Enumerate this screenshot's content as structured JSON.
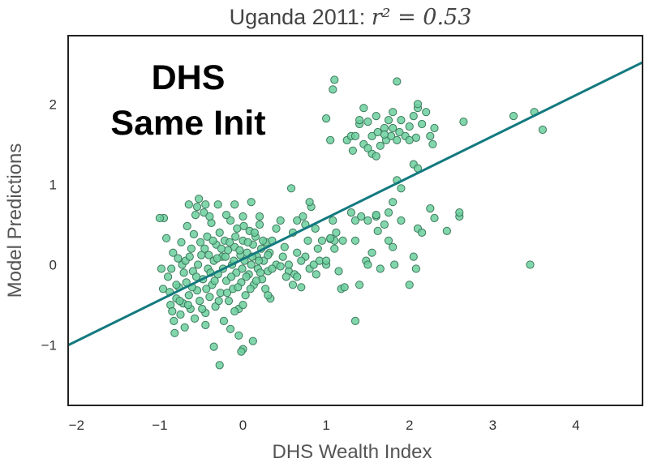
{
  "chart_data": {
    "type": "scatter",
    "title_prefix": "Uganda 2011: ",
    "title_math": "r² = 0.53",
    "xlabel": "DHS Wealth Index",
    "ylabel": "Model Predictions",
    "xlim": [
      -2.1,
      4.8
    ],
    "ylim": [
      -1.75,
      2.85
    ],
    "xticks": [
      {
        "value": -2,
        "label": "−2"
      },
      {
        "value": -1,
        "label": "−1"
      },
      {
        "value": 0,
        "label": "0"
      },
      {
        "value": 1,
        "label": "1"
      },
      {
        "value": 2,
        "label": "2"
      },
      {
        "value": 3,
        "label": "3"
      },
      {
        "value": 4,
        "label": "4"
      }
    ],
    "yticks": [
      {
        "value": -1,
        "label": "−1"
      },
      {
        "value": 0,
        "label": "0"
      },
      {
        "value": 1,
        "label": "1"
      },
      {
        "value": 2,
        "label": "2"
      }
    ],
    "grid": false,
    "overlay_text": [
      "DHS",
      "Same Init"
    ],
    "fit_line": {
      "slope": 0.51,
      "intercept": 0.07,
      "x_range": [
        -2.1,
        4.8
      ]
    },
    "point_color": "#6ccf9e",
    "point_edge": "#3d7a5c",
    "line_color": "#137a7f",
    "points": [
      [
        -0.95,
        0.58
      ],
      [
        -0.92,
        0.33
      ],
      [
        -0.9,
        -0.15
      ],
      [
        -0.88,
        -0.34
      ],
      [
        -0.87,
        -0.5
      ],
      [
        -0.85,
        -0.58
      ],
      [
        -0.83,
        -0.7
      ],
      [
        -0.82,
        -0.85
      ],
      [
        -0.8,
        -0.42
      ],
      [
        -0.78,
        0.08
      ],
      [
        -0.77,
        -0.28
      ],
      [
        -0.75,
        -0.62
      ],
      [
        -0.73,
        0.0
      ],
      [
        -0.72,
        -0.48
      ],
      [
        -0.7,
        -0.78
      ],
      [
        -0.68,
        -0.22
      ],
      [
        -0.67,
        0.48
      ],
      [
        -0.65,
        -0.38
      ],
      [
        -0.63,
        -0.55
      ],
      [
        -0.62,
        0.2
      ],
      [
        -0.6,
        -0.08
      ],
      [
        -0.58,
        -0.67
      ],
      [
        -0.57,
        0.62
      ],
      [
        -0.55,
        -0.32
      ],
      [
        -0.53,
        0.82
      ],
      [
        -0.52,
        -0.45
      ],
      [
        -0.5,
        0.12
      ],
      [
        -0.48,
        -0.18
      ],
      [
        -0.47,
        0.65
      ],
      [
        -0.45,
        -0.6
      ],
      [
        -0.43,
        0.35
      ],
      [
        -0.42,
        -0.05
      ],
      [
        -0.4,
        -0.4
      ],
      [
        -0.38,
        0.52
      ],
      [
        -0.37,
        -0.25
      ],
      [
        -0.35,
        0.05
      ],
      [
        -0.33,
        -0.52
      ],
      [
        -0.32,
        0.25
      ],
      [
        -0.3,
        -0.12
      ],
      [
        -0.28,
        0.4
      ],
      [
        -0.27,
        -0.35
      ],
      [
        -0.25,
        0.1
      ],
      [
        -0.23,
        -0.7
      ],
      [
        -0.22,
        0.3
      ],
      [
        -0.2,
        -0.2
      ],
      [
        -0.18,
        0.18
      ],
      [
        -0.17,
        -0.45
      ],
      [
        -0.15,
        0.55
      ],
      [
        -0.13,
        0.0
      ],
      [
        -0.12,
        -0.3
      ],
      [
        -0.1,
        0.22
      ],
      [
        -0.08,
        -0.1
      ],
      [
        -0.07,
        0.45
      ],
      [
        -0.05,
        -0.55
      ],
      [
        -0.03,
        0.12
      ],
      [
        -0.02,
        -0.22
      ],
      [
        0.0,
        0.3
      ],
      [
        0.02,
        0.05
      ],
      [
        0.03,
        -0.38
      ],
      [
        0.05,
        0.15
      ],
      [
        0.07,
        -0.12
      ],
      [
        0.08,
        0.42
      ],
      [
        0.1,
        0.0
      ],
      [
        0.12,
        0.25
      ],
      [
        0.13,
        -0.25
      ],
      [
        0.15,
        0.35
      ],
      [
        0.17,
        0.1
      ],
      [
        0.18,
        -0.05
      ],
      [
        0.2,
        0.5
      ],
      [
        0.22,
        0.2
      ],
      [
        0.23,
        -0.18
      ],
      [
        0.25,
        0.05
      ],
      [
        0.27,
        -0.3
      ],
      [
        0.28,
        0.28
      ],
      [
        0.3,
        -0.08
      ],
      [
        0.32,
        0.15
      ],
      [
        0.33,
        -0.42
      ],
      [
        -0.98,
        -0.05
      ],
      [
        -0.96,
        -0.3
      ],
      [
        -0.86,
        -0.05
      ],
      [
        -0.84,
        0.15
      ],
      [
        -0.8,
        -0.25
      ],
      [
        -0.76,
        -0.45
      ],
      [
        -0.74,
        0.28
      ],
      [
        -0.71,
        -0.1
      ],
      [
        -0.69,
        0.05
      ],
      [
        -0.66,
        -0.5
      ],
      [
        -0.64,
        0.1
      ],
      [
        -0.61,
        -0.28
      ],
      [
        -0.59,
        0.38
      ],
      [
        -0.56,
        -0.15
      ],
      [
        -0.54,
        0.0
      ],
      [
        -0.51,
        0.28
      ],
      [
        -0.49,
        -0.55
      ],
      [
        -0.46,
        0.2
      ],
      [
        -0.44,
        -0.3
      ],
      [
        -0.41,
        0.12
      ],
      [
        -0.39,
        -0.1
      ],
      [
        -0.36,
        0.3
      ],
      [
        -0.34,
        -0.2
      ],
      [
        -0.31,
        0.08
      ],
      [
        -0.29,
        -0.45
      ],
      [
        -0.26,
        0.2
      ],
      [
        -0.24,
        -0.05
      ],
      [
        -0.21,
        0.1
      ],
      [
        -0.19,
        -0.35
      ],
      [
        -0.16,
        0.28
      ],
      [
        -0.14,
        -0.15
      ],
      [
        -0.11,
        0.05
      ],
      [
        -0.09,
        0.35
      ],
      [
        -0.06,
        -0.28
      ],
      [
        -0.04,
        0.18
      ],
      [
        -0.01,
        -0.05
      ],
      [
        0.01,
        0.48
      ],
      [
        0.04,
        -0.15
      ],
      [
        0.06,
        0.28
      ],
      [
        0.09,
        -0.3
      ],
      [
        0.11,
        0.1
      ],
      [
        0.14,
        0.4
      ],
      [
        0.16,
        -0.2
      ],
      [
        0.19,
        0.05
      ],
      [
        0.21,
        -0.1
      ],
      [
        0.24,
        0.3
      ],
      [
        -0.65,
        0.75
      ],
      [
        -0.55,
        0.72
      ],
      [
        -0.45,
        0.75
      ],
      [
        -0.3,
        0.75
      ],
      [
        -0.1,
        0.75
      ],
      [
        0.1,
        0.78
      ],
      [
        -0.4,
        0.6
      ],
      [
        -0.2,
        0.62
      ],
      [
        0.0,
        0.6
      ],
      [
        0.2,
        0.6
      ],
      [
        -1.0,
        0.58
      ],
      [
        -0.15,
        -0.8
      ],
      [
        -0.45,
        -0.75
      ],
      [
        -0.35,
        -1.02
      ],
      [
        -0.05,
        -0.88
      ],
      [
        0.0,
        -1.05
      ],
      [
        -0.28,
        -1.25
      ],
      [
        -0.02,
        -1.08
      ],
      [
        0.12,
        -0.95
      ],
      [
        -0.1,
        -0.58
      ],
      [
        0.0,
        -0.5
      ],
      [
        0.3,
        -0.38
      ],
      [
        0.35,
        0.3
      ],
      [
        0.4,
        0.0
      ],
      [
        0.45,
        0.55
      ],
      [
        0.5,
        0.22
      ],
      [
        0.55,
        -0.08
      ],
      [
        0.58,
        0.95
      ],
      [
        0.6,
        0.4
      ],
      [
        0.62,
        -0.12
      ],
      [
        0.65,
        0.15
      ],
      [
        0.7,
        -0.28
      ],
      [
        0.72,
        0.6
      ],
      [
        0.75,
        0.1
      ],
      [
        0.78,
        0.3
      ],
      [
        0.8,
        -0.05
      ],
      [
        0.82,
        0.72
      ],
      [
        0.85,
        0.0
      ],
      [
        0.88,
        -0.12
      ],
      [
        0.92,
        0.05
      ],
      [
        0.95,
        0.3
      ],
      [
        0.6,
        -0.25
      ],
      [
        0.55,
        0.0
      ],
      [
        0.75,
        0.5
      ],
      [
        0.87,
        0.45
      ],
      [
        0.65,
        0.55
      ],
      [
        1.8,
        0.22
      ],
      [
        0.48,
        0.1
      ],
      [
        0.52,
        -0.15
      ],
      [
        0.7,
        0.05
      ],
      [
        0.8,
        0.78
      ],
      [
        0.4,
        0.45
      ],
      [
        0.3,
        0.12
      ],
      [
        0.35,
        -0.05
      ],
      [
        0.9,
        0.2
      ],
      [
        0.45,
        -0.02
      ],
      [
        0.65,
        -0.15
      ],
      [
        1.0,
        0.0
      ],
      [
        1.05,
        0.32
      ],
      [
        1.08,
        0.55
      ],
      [
        1.1,
        0.3
      ],
      [
        1.1,
        0.2
      ],
      [
        1.12,
        0.4
      ],
      [
        1.15,
        -0.08
      ],
      [
        1.18,
        -0.3
      ],
      [
        1.22,
        -0.28
      ],
      [
        1.3,
        0.65
      ],
      [
        1.35,
        0.55
      ],
      [
        1.35,
        0.3
      ],
      [
        1.4,
        -0.25
      ],
      [
        1.42,
        0.6
      ],
      [
        1.48,
        0.05
      ],
      [
        1.5,
        0.55
      ],
      [
        1.55,
        0.15
      ],
      [
        1.6,
        0.6
      ],
      [
        1.62,
        0.42
      ],
      [
        1.65,
        -0.05
      ],
      [
        1.7,
        0.5
      ],
      [
        1.75,
        0.3
      ],
      [
        1.82,
        0.0
      ],
      [
        1.9,
        0.55
      ],
      [
        2.0,
        -0.25
      ],
      [
        2.05,
        0.1
      ],
      [
        2.1,
        0.45
      ],
      [
        2.15,
        0.4
      ],
      [
        2.25,
        0.7
      ],
      [
        2.3,
        0.58
      ],
      [
        2.45,
        0.42
      ],
      [
        2.6,
        0.6
      ],
      [
        2.6,
        0.65
      ],
      [
        1.35,
        -0.7
      ],
      [
        1.0,
        0.05
      ],
      [
        1.5,
        0.0
      ],
      [
        1.6,
        0.62
      ],
      [
        1.2,
        0.3
      ],
      [
        1.8,
        0.78
      ],
      [
        2.08,
        -0.05
      ],
      [
        1.75,
        0.65
      ],
      [
        1.05,
        0.33
      ],
      [
        3.45,
        0.0
      ],
      [
        3.6,
        1.68
      ],
      [
        3.5,
        1.9
      ],
      [
        3.25,
        1.85
      ],
      [
        2.65,
        1.78
      ],
      [
        1.0,
        1.82
      ],
      [
        1.08,
        2.18
      ],
      [
        1.1,
        2.3
      ],
      [
        1.05,
        1.55
      ],
      [
        1.25,
        1.55
      ],
      [
        1.3,
        1.6
      ],
      [
        1.32,
        1.42
      ],
      [
        1.4,
        1.75
      ],
      [
        1.45,
        1.95
      ],
      [
        1.45,
        1.5
      ],
      [
        1.5,
        1.78
      ],
      [
        1.55,
        1.6
      ],
      [
        1.55,
        1.38
      ],
      [
        1.6,
        1.85
      ],
      [
        1.62,
        1.65
      ],
      [
        1.65,
        1.48
      ],
      [
        1.7,
        1.7
      ],
      [
        1.72,
        1.55
      ],
      [
        1.75,
        1.8
      ],
      [
        1.78,
        1.6
      ],
      [
        1.8,
        1.9
      ],
      [
        1.8,
        1.7
      ],
      [
        1.85,
        1.55
      ],
      [
        1.88,
        1.65
      ],
      [
        1.9,
        1.8
      ],
      [
        1.95,
        1.6
      ],
      [
        2.0,
        1.72
      ],
      [
        2.05,
        1.85
      ],
      [
        2.08,
        1.58
      ],
      [
        2.1,
        1.95
      ],
      [
        2.15,
        1.75
      ],
      [
        2.2,
        1.9
      ],
      [
        2.25,
        1.6
      ],
      [
        2.3,
        1.7
      ],
      [
        1.5,
        1.45
      ],
      [
        1.6,
        1.35
      ],
      [
        1.85,
        2.28
      ],
      [
        2.1,
        2.0
      ],
      [
        2.0,
        1.55
      ],
      [
        1.4,
        1.8
      ],
      [
        2.05,
        1.25
      ],
      [
        2.1,
        1.2
      ],
      [
        1.85,
        1.05
      ],
      [
        1.9,
        0.95
      ],
      [
        2.28,
        1.5
      ],
      [
        1.7,
        1.62
      ],
      [
        1.35,
        1.6
      ]
    ]
  }
}
